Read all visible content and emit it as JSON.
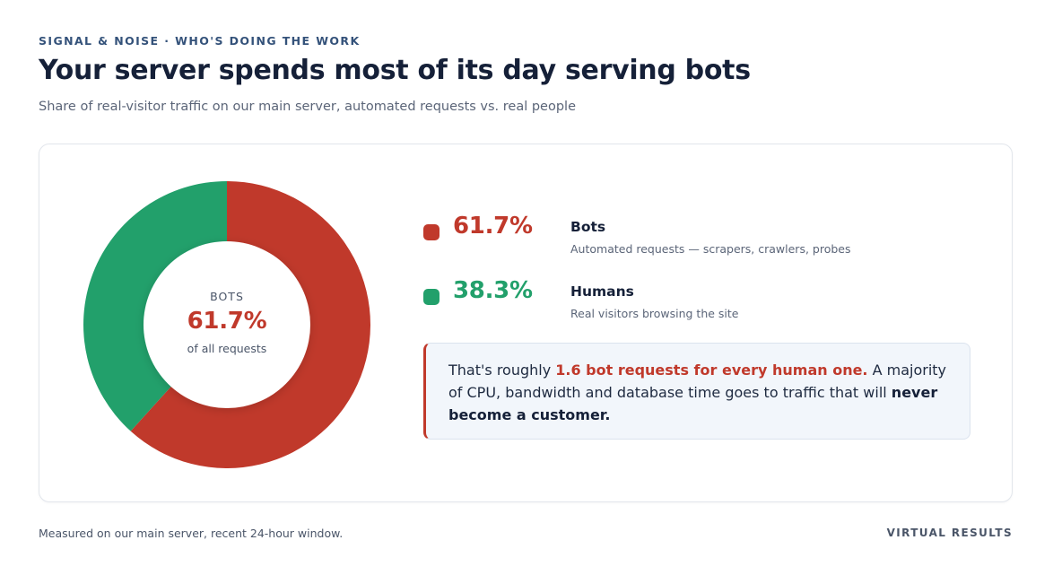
{
  "header": {
    "eyebrow": "SIGNAL & NOISE · WHO'S DOING THE WORK",
    "title": "Your server spends most of its day serving bots",
    "subtitle": "Share of real-visitor traffic on our main server, automated requests vs. real people"
  },
  "center": {
    "top": "BOTS",
    "value": "61.7%",
    "bottom": "of all requests"
  },
  "legend": [
    {
      "pct": "61.7%",
      "name": "Bots",
      "desc": "Automated requests — scrapers, crawlers, probes",
      "color": "#c0392b"
    },
    {
      "pct": "38.3%",
      "name": "Humans",
      "desc": "Real visitors browsing the site",
      "color": "#22a06b"
    }
  ],
  "callout": {
    "prefix": "That's roughly ",
    "highlight": "1.6 bot requests for every human one.",
    "middle": " A majority of CPU, bandwidth and database time goes to traffic that will ",
    "emphasis": "never become a customer."
  },
  "footer": {
    "note": "Measured on our main server, recent 24-hour window.",
    "brand": "VIRTUAL RESULTS"
  },
  "chart_data": {
    "type": "pie",
    "categories": [
      "Bots",
      "Humans"
    ],
    "values": [
      61.7,
      38.3
    ],
    "colors": [
      "#c0392b",
      "#22a06b"
    ],
    "title": "Your server spends most of its day serving bots",
    "subtitle": "Share of real-visitor traffic on our main server, automated requests vs. real people",
    "legend": "right"
  }
}
